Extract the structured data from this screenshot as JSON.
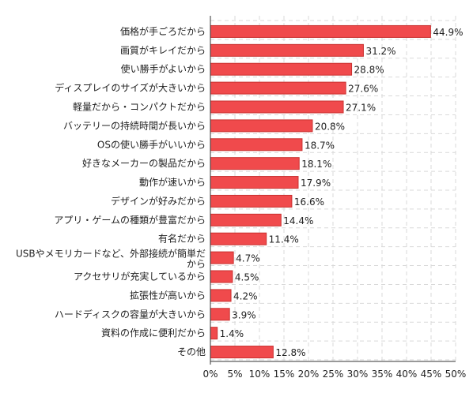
{
  "chart_data": {
    "type": "bar",
    "orientation": "horizontal",
    "categories": [
      "価格が手ごろだから",
      "画質がキレイだから",
      "使い勝手がよいから",
      "ディスプレイのサイズが大きいから",
      "軽量だから・コンパクトだから",
      "バッテリーの持続時間が長いから",
      "OSの使い勝手がいいから",
      "好きなメーカーの製品だから",
      "動作が速いから",
      "デザインが好みだから",
      "アプリ・ゲームの種類が豊富だから",
      "有名だから",
      "USBやメモリカードなど、外部接続が簡単だから",
      "アクセサリが充実しているから",
      "拡張性が高いから",
      "ハードディスクの容量が大きいから",
      "資料の作成に便利だから",
      "その他"
    ],
    "values": [
      44.9,
      31.2,
      28.8,
      27.6,
      27.1,
      20.8,
      18.7,
      18.1,
      17.9,
      16.6,
      14.4,
      11.4,
      4.7,
      4.5,
      4.2,
      3.9,
      1.4,
      12.8
    ],
    "value_labels": [
      "44.9%",
      "31.2%",
      "28.8%",
      "27.6%",
      "27.1%",
      "20.8%",
      "18.7%",
      "18.1%",
      "17.9%",
      "16.6%",
      "14.4%",
      "11.4%",
      "4.7%",
      "4.5%",
      "4.2%",
      "3.9%",
      "1.4%",
      "12.8%"
    ],
    "xlim": [
      0,
      50
    ],
    "x_ticks": [
      "0%",
      "5%",
      "10%",
      "15%",
      "20%",
      "25%",
      "30%",
      "35%",
      "40%",
      "45%",
      "50%"
    ],
    "grid": true,
    "bar_color": "#f04a4c",
    "bar_edge_color": "#c9302f"
  }
}
